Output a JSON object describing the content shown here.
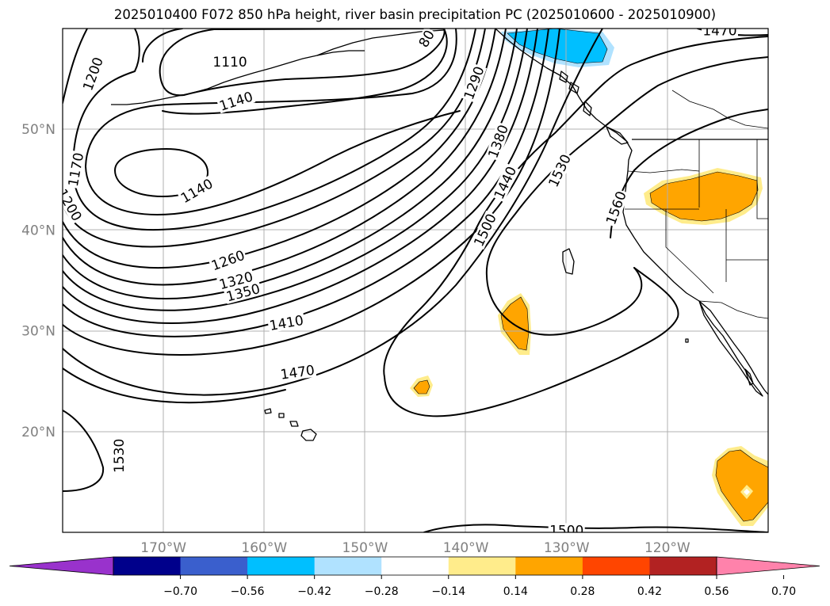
{
  "title": "2025010400 F072 850 hPa height, river basin precipitation PC (2025010600 - 2025010900)",
  "map": {
    "extent_lon": [
      -180,
      -110
    ],
    "extent_lat": [
      10,
      60
    ],
    "lon_ticks": [
      {
        "lon": -170,
        "label": "170°W"
      },
      {
        "lon": -160,
        "label": "160°W"
      },
      {
        "lon": -150,
        "label": "150°W"
      },
      {
        "lon": -140,
        "label": "140°W"
      },
      {
        "lon": -130,
        "label": "130°W"
      },
      {
        "lon": -120,
        "label": "120°W"
      }
    ],
    "lat_ticks": [
      {
        "lat": 50,
        "label": "50°N"
      },
      {
        "lat": 40,
        "label": "40°N"
      },
      {
        "lat": 30,
        "label": "30°N"
      },
      {
        "lat": 20,
        "label": "20°N"
      }
    ],
    "grid": true,
    "contour_labels": [
      {
        "text": "1200",
        "lon": -177.0,
        "lat": 55.5,
        "rot": -70
      },
      {
        "text": "1110",
        "lon": -163.4,
        "lat": 56.7,
        "rot": 0
      },
      {
        "text": "1140",
        "lon": -162.8,
        "lat": 52.8,
        "rot": -18
      },
      {
        "text": "1170",
        "lon": -178.7,
        "lat": 46.0,
        "rot": -80
      },
      {
        "text": "1200",
        "lon": -179.3,
        "lat": 42.5,
        "rot": 60
      },
      {
        "text": "1140",
        "lon": -166.7,
        "lat": 43.9,
        "rot": -30
      },
      {
        "text": "1260",
        "lon": -163.6,
        "lat": 37.0,
        "rot": -20
      },
      {
        "text": "1320",
        "lon": -162.8,
        "lat": 35.0,
        "rot": -15
      },
      {
        "text": "1350",
        "lon": -162.1,
        "lat": 33.8,
        "rot": -15
      },
      {
        "text": "1410",
        "lon": -157.8,
        "lat": 30.8,
        "rot": -10
      },
      {
        "text": "1470",
        "lon": -156.7,
        "lat": 25.9,
        "rot": -8
      },
      {
        "text": "80",
        "lon": -143.9,
        "lat": 59.0,
        "rot": -60
      },
      {
        "text": "1290",
        "lon": -139.2,
        "lat": 54.6,
        "rot": -70
      },
      {
        "text": "1380",
        "lon": -136.8,
        "lat": 48.8,
        "rot": -70
      },
      {
        "text": "1440",
        "lon": -136.1,
        "lat": 44.7,
        "rot": -65
      },
      {
        "text": "1500",
        "lon": -138.1,
        "lat": 40.0,
        "rot": -65
      },
      {
        "text": "1530",
        "lon": -130.7,
        "lat": 45.9,
        "rot": -65
      },
      {
        "text": "1560",
        "lon": -125.1,
        "lat": 42.2,
        "rot": -70
      },
      {
        "text": "1470",
        "lon": -114.8,
        "lat": 59.8,
        "rot": 0
      },
      {
        "text": "1530",
        "lon": -174.4,
        "lat": 17.6,
        "rot": -90
      },
      {
        "text": "1500",
        "lon": -130.0,
        "lat": 10.2,
        "rot": 0
      }
    ]
  },
  "colorbar": {
    "colors": [
      "#9932cc",
      "#00008b",
      "#3a5fcd",
      "#00bfff",
      "#b0e2ff",
      "#ffffff",
      "#ffec8b",
      "#ffa500",
      "#ff4500",
      "#b22222",
      "#ff82ab"
    ],
    "levels": [
      -0.7,
      -0.56,
      -0.42,
      -0.28,
      -0.14,
      0.14,
      0.28,
      0.42,
      0.56,
      0.7
    ],
    "labels": [
      "−0.70",
      "−0.56",
      "−0.42",
      "−0.28",
      "−0.14",
      "0.14",
      "0.28",
      "0.42",
      "0.56",
      "0.70"
    ],
    "extend": "both"
  },
  "precip_areas": [
    {
      "name": "pacific-nw-blue",
      "color": "#00bfff"
    },
    {
      "name": "idaho-orange",
      "color": "#ffa500"
    },
    {
      "name": "ocean-orange-east",
      "color": "#ffa500"
    },
    {
      "name": "ocean-orange-west",
      "color": "#ffa500"
    },
    {
      "name": "mexico-orange",
      "color": "#ffa500"
    }
  ]
}
